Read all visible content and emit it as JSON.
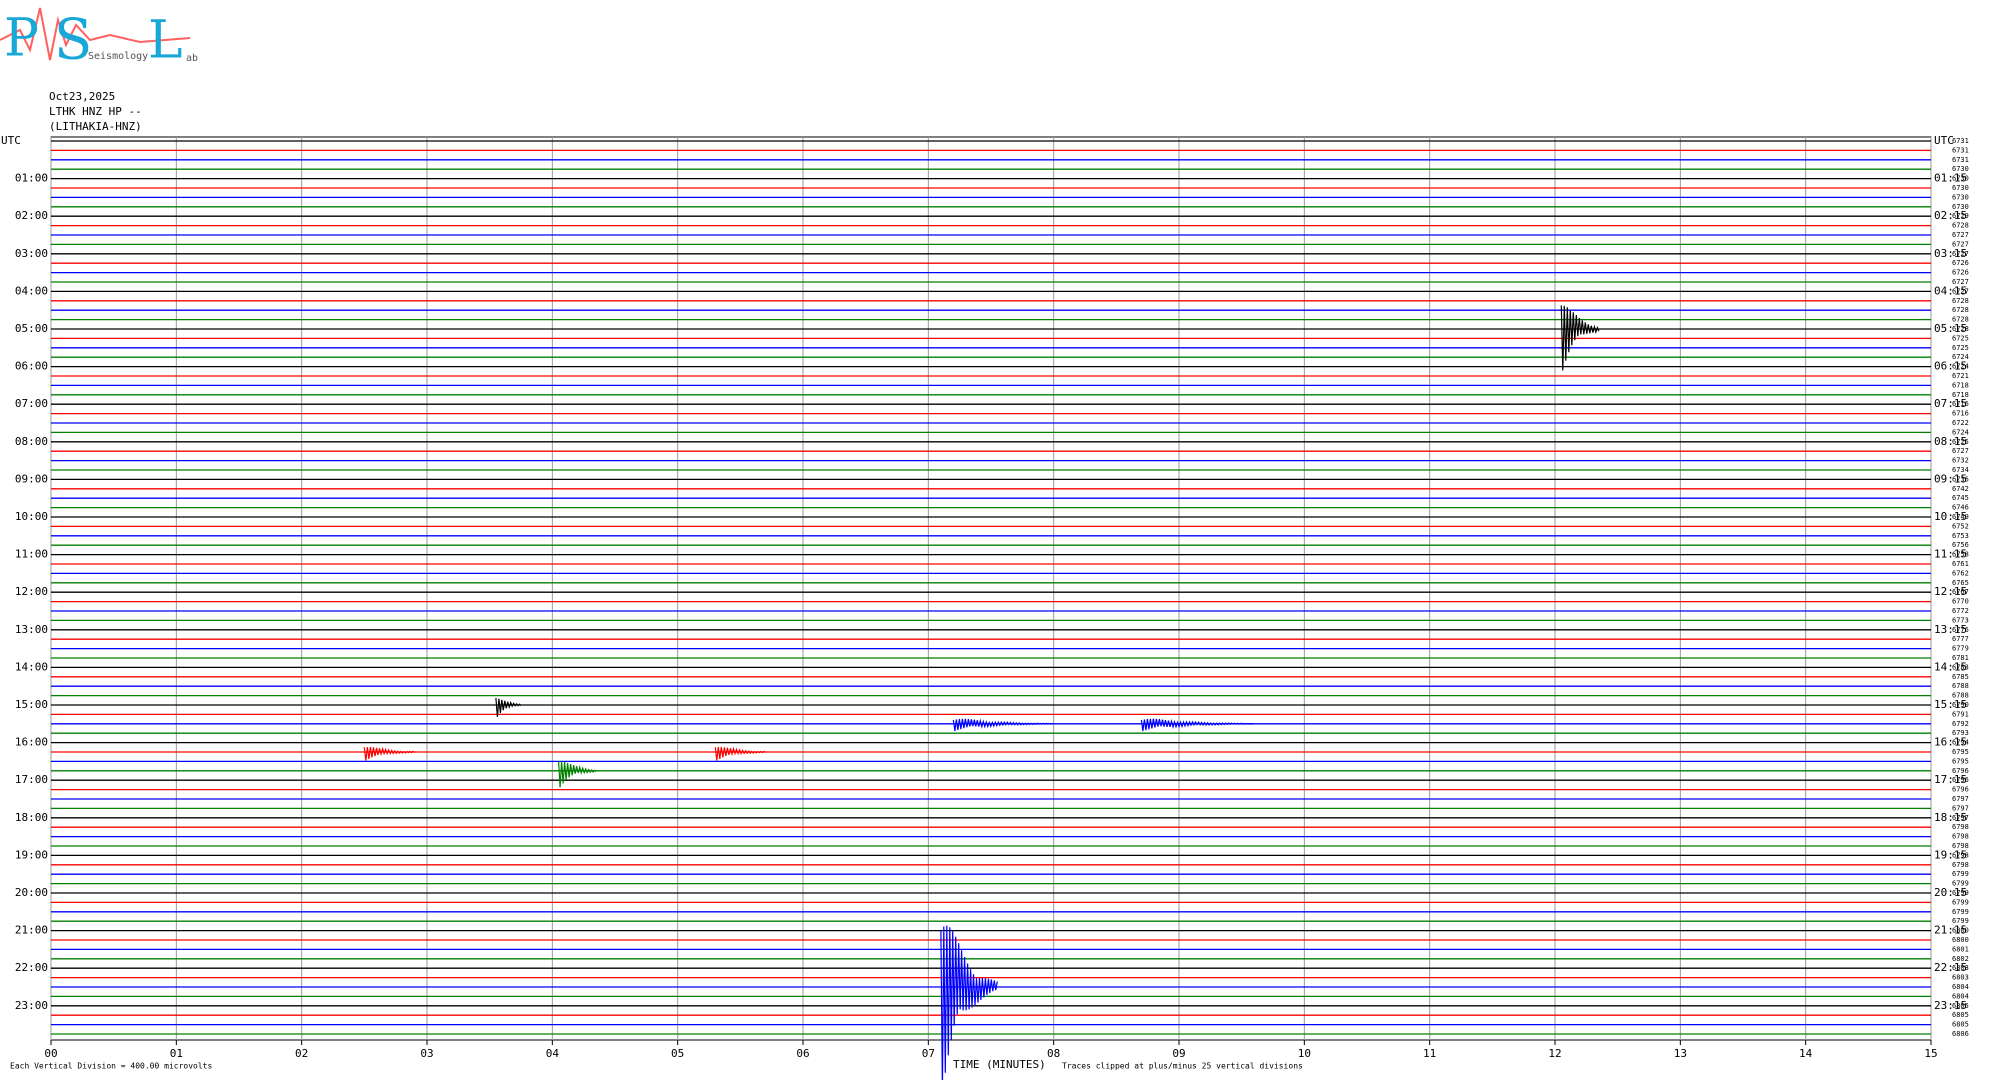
{
  "chart_data": {
    "type": "helicorder",
    "logo": {
      "letters": [
        "P",
        "S",
        "L"
      ],
      "words": [
        "Seismology",
        "ab"
      ]
    },
    "header": [
      "Oct23,2025",
      "LTHK HNZ HP --",
      "(LITHAKIA-HNZ)"
    ],
    "left_labels": [
      "UTC",
      "01:00",
      "02:00",
      "03:00",
      "04:00",
      "05:00",
      "06:00",
      "07:00",
      "08:00",
      "09:00",
      "10:00",
      "11:00",
      "12:00",
      "13:00",
      "14:00",
      "15:00",
      "16:00",
      "17:00",
      "18:00",
      "19:00",
      "20:00",
      "21:00",
      "22:00",
      "23:00"
    ],
    "right_labels": [
      "UTC",
      "01:15",
      "02:15",
      "03:15",
      "04:15",
      "05:15",
      "06:15",
      "07:15",
      "08:15",
      "09:15",
      "10:15",
      "11:15",
      "12:15",
      "13:15",
      "14:15",
      "15:15",
      "16:15",
      "17:15",
      "18:15",
      "19:15",
      "20:15",
      "21:15",
      "22:15",
      "23:15"
    ],
    "right_values": [
      6731,
      6731,
      6731,
      6730,
      6730,
      6730,
      6730,
      6730,
      6729,
      6728,
      6727,
      6727,
      6727,
      6726,
      6726,
      6727,
      6727,
      6728,
      6728,
      6728,
      6728,
      6725,
      6725,
      6724,
      6724,
      6721,
      6718,
      6718,
      6716,
      6716,
      6722,
      6724,
      6725,
      6727,
      6732,
      6734,
      6736,
      6742,
      6745,
      6746,
      6749,
      6752,
      6753,
      6756,
      6758,
      6761,
      6762,
      6765,
      6767,
      6770,
      6772,
      6773,
      6776,
      6777,
      6779,
      6781,
      6783,
      6785,
      6788,
      6788,
      6790,
      6791,
      6792,
      6793,
      6794,
      6795,
      6795,
      6796,
      6796,
      6796,
      6797,
      6797,
      6797,
      6798,
      6798,
      6798,
      6798,
      6798,
      6799,
      6799,
      6799,
      6799,
      6799,
      6799,
      6800,
      6800,
      6801,
      6802,
      6803,
      6803,
      6804,
      6804,
      6805,
      6805,
      6805,
      6806
    ],
    "trace_colors": [
      "#000000",
      "#ff0000",
      "#0000ff",
      "#008000"
    ],
    "xlim": [
      0,
      15
    ],
    "xticks": [
      {
        "value": 0,
        "label": "00"
      },
      {
        "value": 1,
        "label": "01"
      },
      {
        "value": 2,
        "label": "02"
      },
      {
        "value": 3,
        "label": "03"
      },
      {
        "value": 4,
        "label": "04"
      },
      {
        "value": 5,
        "label": "05"
      },
      {
        "value": 6,
        "label": "06"
      },
      {
        "value": 7,
        "label": "07"
      },
      {
        "value": 8,
        "label": "08"
      },
      {
        "value": 9,
        "label": "09"
      },
      {
        "value": 10,
        "label": "10"
      },
      {
        "value": 11,
        "label": "11"
      },
      {
        "value": 12,
        "label": "12"
      },
      {
        "value": 13,
        "label": "13"
      },
      {
        "value": 14,
        "label": "14"
      },
      {
        "value": 15,
        "label": "15"
      }
    ],
    "xlabel": "TIME (MINUTES)",
    "scale_note": "Each Vertical Division =  400.00 microvolts",
    "clip_note": "Traces clipped at plus/minus 25 vertical divisions",
    "events": [
      {
        "row": 20,
        "minute": 12.05,
        "amplitude": 5,
        "duration": 0.3
      },
      {
        "row": 90,
        "minute": 7.1,
        "amplitude": 12,
        "duration": 0.45
      },
      {
        "row": 67,
        "minute": 4.05,
        "amplitude": 2,
        "duration": 0.3
      },
      {
        "row": 62,
        "minute": 7.2,
        "amplitude": 0.8,
        "duration": 0.8
      },
      {
        "row": 62,
        "minute": 8.7,
        "amplitude": 0.8,
        "duration": 0.9
      },
      {
        "row": 65,
        "minute": 2.5,
        "amplitude": 1,
        "duration": 0.4
      },
      {
        "row": 65,
        "minute": 5.3,
        "amplitude": 1,
        "duration": 0.4
      },
      {
        "row": 60,
        "minute": 3.55,
        "amplitude": 1.5,
        "duration": 0.2
      }
    ]
  }
}
